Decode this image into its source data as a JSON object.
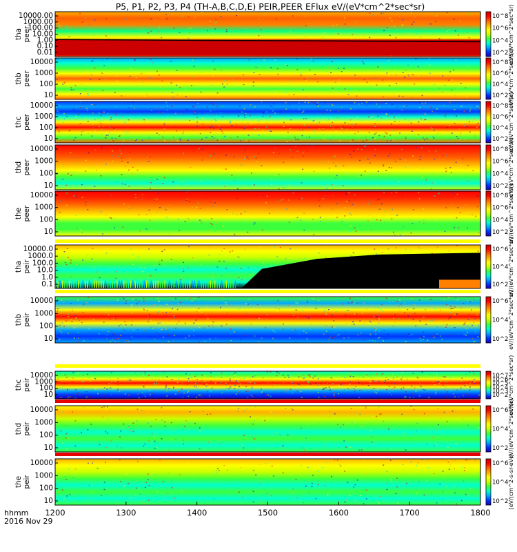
{
  "title": "P5, P1, P2, P3, P4 (TH-A,B,C,D,E) PEIR,PEER EFlux eV/(eV*cm^2*sec*sr)",
  "xaxis": {
    "corner_label_top": "hhmm",
    "corner_label_bottom": "2016 Nov 29",
    "ticks": [
      "1200",
      "1300",
      "1400",
      "1500",
      "1600",
      "1700",
      "1800"
    ],
    "range": [
      1200,
      1800
    ]
  },
  "colors": {
    "rainbow": [
      "#1a00b4",
      "#0033ff",
      "#00a6ff",
      "#00ffd0",
      "#3cff3c",
      "#c8ff00",
      "#ffff00",
      "#ffb000",
      "#ff6000",
      "#ff0000",
      "#cc0000"
    ],
    "fill_black": "#000000",
    "band_red": "#e80000"
  },
  "chart_data": {
    "type": "heatmap",
    "x_units": "hhmm",
    "panels": [
      {
        "id": "tha-peer",
        "ylabel_top": "tha",
        "ylabel_bottom": "peer",
        "ylog": true,
        "yticks": [
          "10000.00",
          "1000.00",
          "100.00",
          "10.00",
          "1.00",
          "0.10",
          "0.01"
        ],
        "cbar_ticks": [
          "10^8",
          "10^6",
          "10^4",
          "10^2"
        ],
        "cbar_label": "eV/(eV*cm^2*sec*sr)"
      },
      {
        "id": "thb-peer",
        "ylabel_top": "thb",
        "ylabel_bottom": "peer",
        "ylog": true,
        "yticks": [
          "10000",
          "1000",
          "100",
          "10"
        ],
        "cbar_ticks": [
          "10^8",
          "10^6",
          "10^4",
          "10^2"
        ],
        "cbar_label": "eV/(eV*cm^2*sec*sr)"
      },
      {
        "id": "thc-peer",
        "ylabel_top": "thc",
        "ylabel_bottom": "peer",
        "ylog": true,
        "yticks": [
          "10000",
          "1000",
          "100",
          "10"
        ],
        "cbar_ticks": [
          "10^8",
          "10^6",
          "10^4",
          "10^2"
        ],
        "cbar_label": "eV/(eV*cm^2*sec*sr)"
      },
      {
        "id": "thd-peer",
        "ylabel_top": "thd",
        "ylabel_bottom": "peer",
        "ylog": true,
        "yticks": [
          "10000",
          "1000",
          "100",
          "10"
        ],
        "cbar_ticks": [
          "10^8",
          "10^6",
          "10^4",
          "10^2"
        ],
        "cbar_label": "eV/(eV*cm^2*sec*sr)"
      },
      {
        "id": "the-peer",
        "ylabel_top": "the",
        "ylabel_bottom": "peer",
        "ylog": true,
        "yticks": [
          "10000",
          "1000",
          "100",
          "10"
        ],
        "cbar_ticks": [
          "10^8",
          "10^6",
          "10^4",
          "10^2"
        ],
        "cbar_label": "eV/(eV*cm^2*sec*sr)"
      },
      {
        "id": "tha-peir",
        "ylabel_top": "tha",
        "ylabel_bottom": "peir",
        "ylog": true,
        "yticks": [
          "10000.0",
          "1000.0",
          "100.0",
          "10.0",
          "1.0",
          "0.1"
        ],
        "cbar_ticks": [
          "10^6",
          "10^4",
          "10^2"
        ],
        "cbar_label": "eV/(eV*cm^2*sec*sr)"
      },
      {
        "id": "thb-peir",
        "ylabel_top": "thb",
        "ylabel_bottom": "peir",
        "ylog": true,
        "yticks": [
          "10000",
          "1000",
          "100",
          "10"
        ],
        "cbar_ticks": [
          "10^6",
          "10^4",
          "10^2"
        ],
        "cbar_label": "eV/(eV*cm^2*sec*sr)"
      },
      {
        "id": "thc-peir",
        "ylabel_top": "thc",
        "ylabel_bottom": "peir",
        "ylog": true,
        "yticks": [
          "10000",
          "1000",
          "100",
          "10"
        ],
        "cbar_ticks": [
          "10^7",
          "10^6",
          "10^5",
          "10^4",
          "10^3",
          "10^2"
        ],
        "cbar_label": "eV/(eV*cm^2*sec*sr)"
      },
      {
        "id": "thd-peir",
        "ylabel_top": "thd",
        "ylabel_bottom": "peir",
        "ylog": true,
        "yticks": [
          "10000",
          "1000",
          "100",
          "10"
        ],
        "cbar_ticks": [
          "10^6",
          "10^4",
          "10^2"
        ],
        "cbar_label": "eV/(eV*cm^2*sec*sr)"
      },
      {
        "id": "the-peir",
        "ylabel_top": "the",
        "ylabel_bottom": "peir",
        "ylog": true,
        "yticks": [
          "10000",
          "1000",
          "100",
          "10"
        ],
        "cbar_ticks": [
          "10^6",
          "10^4",
          "10^2"
        ],
        "cbar_label": "[eV/(cm^2-s-sr-eV)]"
      }
    ]
  }
}
